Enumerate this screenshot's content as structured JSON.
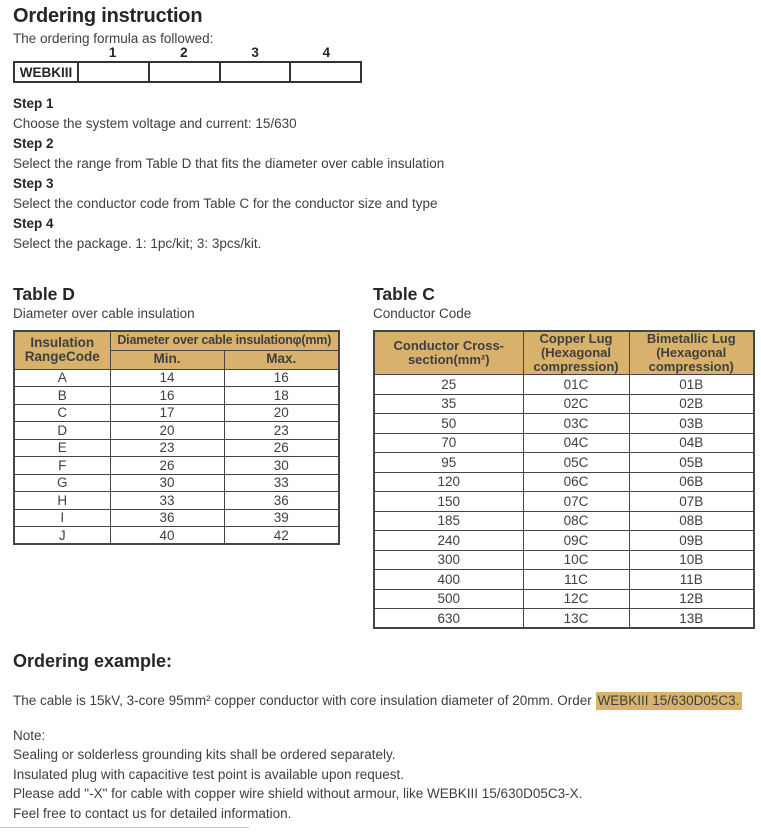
{
  "colors": {
    "header_bg": "#d8b26c",
    "highlight_bg": "#d8b26c",
    "border": "#454545",
    "text": "#3f3f3f",
    "heading": "#262626"
  },
  "header": {
    "title": "Ordering instruction",
    "intro": "The ordering formula as followed:"
  },
  "formula": {
    "prefix": "WEBKIII",
    "positions": [
      "1",
      "2",
      "3",
      "4"
    ]
  },
  "steps": [
    {
      "label": "Step 1",
      "text": "Choose the system voltage and current: 15/630"
    },
    {
      "label": "Step 2",
      "text": "Select the range from Table D that fits the diameter over cable insulation"
    },
    {
      "label": "Step 3",
      "text": "Select the conductor code from Table C for the conductor size and type"
    },
    {
      "label": "Step 4",
      "text": "Select the package. 1: 1pc/kit; 3: 3pcs/kit."
    }
  ],
  "table_d": {
    "title": "Table D",
    "subtitle": "Diameter over cable insulation",
    "header": {
      "range": "Insulation RangeCode",
      "span": "Diameter over cable insulationφ(mm)",
      "min": "Min.",
      "max": "Max."
    },
    "rows": [
      [
        "A",
        "14",
        "16"
      ],
      [
        "B",
        "16",
        "18"
      ],
      [
        "C",
        "17",
        "20"
      ],
      [
        "D",
        "20",
        "23"
      ],
      [
        "E",
        "23",
        "26"
      ],
      [
        "F",
        "26",
        "30"
      ],
      [
        "G",
        "30",
        "33"
      ],
      [
        "H",
        "33",
        "36"
      ],
      [
        "I",
        "36",
        "39"
      ],
      [
        "J",
        "40",
        "42"
      ]
    ]
  },
  "table_c": {
    "title": "Table C",
    "subtitle": "Conductor Code",
    "header": {
      "col1": "Conductor Cross-section(mm²)",
      "col2": "Copper Lug (Hexagonal compression)",
      "col3": "Bimetallic Lug (Hexagonal compression)"
    },
    "rows": [
      [
        "25",
        "01C",
        "01B"
      ],
      [
        "35",
        "02C",
        "02B"
      ],
      [
        "50",
        "03C",
        "03B"
      ],
      [
        "70",
        "04C",
        "04B"
      ],
      [
        "95",
        "05C",
        "05B"
      ],
      [
        "120",
        "06C",
        "06B"
      ],
      [
        "150",
        "07C",
        "07B"
      ],
      [
        "185",
        "08C",
        "08B"
      ],
      [
        "240",
        "09C",
        "09B"
      ],
      [
        "300",
        "10C",
        "10B"
      ],
      [
        "400",
        "11C",
        "11B"
      ],
      [
        "500",
        "12C",
        "12B"
      ],
      [
        "630",
        "13C",
        "13B"
      ]
    ]
  },
  "example": {
    "title": "Ordering example:",
    "text_before": "The cable is 15kV, 3-core 95mm² copper conductor with core insulation diameter of 20mm. Order ",
    "highlight": "WEBKIII 15/630D05C3."
  },
  "note": {
    "label": "Note:",
    "lines": [
      "Sealing or solderless grounding kits shall be ordered separately.",
      "Insulated plug with capacitive test point is available upon request.",
      "Please add \"-X\" for cable with copper wire shield without armour,  like WEBKIII 15/630D05C3-X.",
      "Feel free to contact us for detailed information."
    ]
  }
}
